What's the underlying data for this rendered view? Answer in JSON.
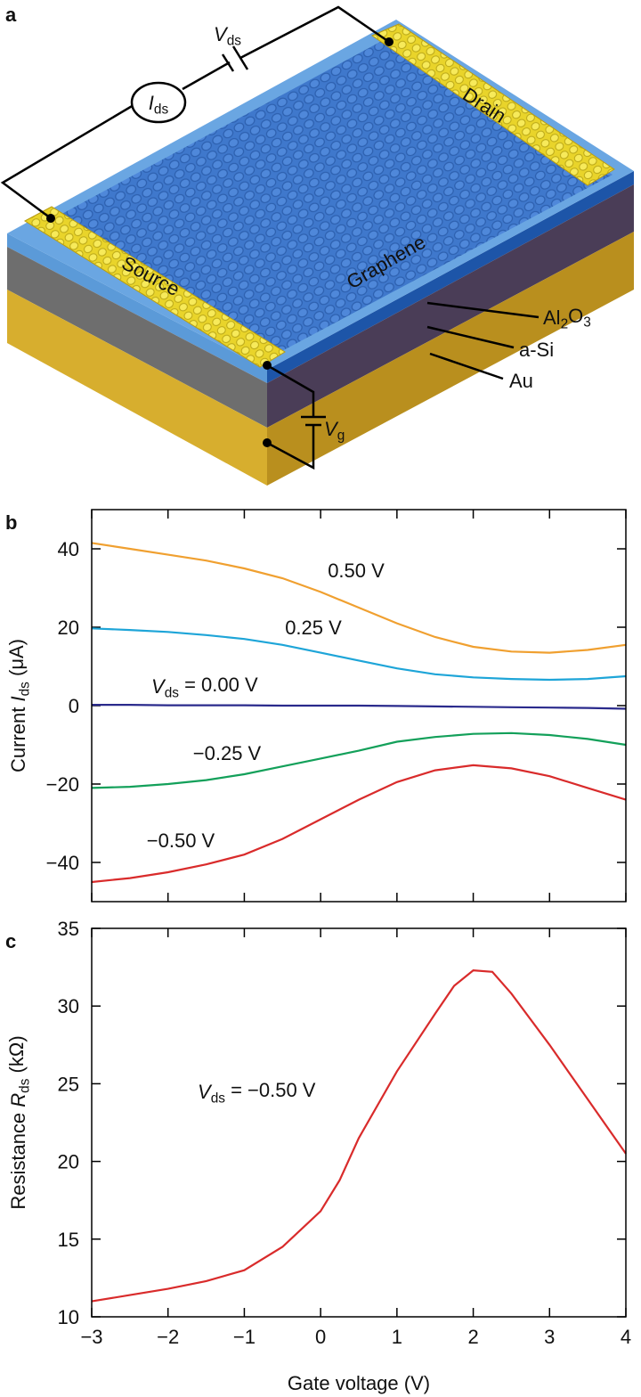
{
  "diagram": {
    "panel_label": "a",
    "vds": [
      {
        "t": "V",
        "i": true
      },
      {
        "t": "ds",
        "sub": true
      }
    ],
    "ids": [
      {
        "t": "I",
        "i": true
      },
      {
        "t": "ds",
        "sub": true
      }
    ],
    "drain": "Drain",
    "source": "Source",
    "graphene": "Graphene",
    "al2o3": [
      {
        "t": "Al"
      },
      {
        "t": "2",
        "sub": true
      },
      {
        "t": "O"
      },
      {
        "t": "3",
        "sub": true
      }
    ],
    "asi": "a-Si",
    "au": "Au",
    "vg": [
      {
        "t": "V",
        "i": true
      },
      {
        "t": "g",
        "sub": true
      }
    ]
  },
  "chart_data": [
    {
      "type": "line",
      "panel_label": "b",
      "y_label": [
        {
          "t": "Current "
        },
        {
          "t": "I",
          "i": true
        },
        {
          "t": "ds",
          "sub": true
        },
        {
          "t": " (μA)"
        }
      ],
      "x": [
        -3,
        -2.5,
        -2,
        -1.5,
        -1,
        -0.5,
        0,
        0.5,
        1,
        1.5,
        2,
        2.5,
        3,
        3.5,
        4
      ],
      "series": [
        {
          "label": [
            {
              "t": "0.50 V"
            }
          ],
          "color": "#f0a030",
          "values": [
            41.5,
            40,
            38.5,
            37,
            35,
            32.5,
            29,
            25,
            21,
            17.5,
            15,
            13.8,
            13.5,
            14.2,
            15.5
          ]
        },
        {
          "label": [
            {
              "t": "0.25 V"
            }
          ],
          "color": "#1ea5d8",
          "values": [
            19.7,
            19.3,
            18.8,
            18,
            17,
            15.5,
            13.5,
            11.5,
            9.5,
            8,
            7.2,
            6.8,
            6.6,
            6.8,
            7.5
          ]
        },
        {
          "label": [
            {
              "t": "V",
              "i": true
            },
            {
              "t": "ds",
              "sub": true
            },
            {
              "t": " = 0.00 V"
            }
          ],
          "color": "#2a2a8c",
          "values": [
            0.2,
            0.2,
            0.1,
            0.1,
            0.1,
            0,
            0,
            0,
            -0.1,
            -0.2,
            -0.3,
            -0.4,
            -0.5,
            -0.6,
            -0.8
          ]
        },
        {
          "label": [
            {
              "t": "−0.25 V"
            }
          ],
          "color": "#13a05a",
          "values": [
            -21,
            -20.7,
            -20,
            -19,
            -17.5,
            -15.5,
            -13.5,
            -11.5,
            -9.2,
            -8,
            -7.2,
            -7,
            -7.5,
            -8.5,
            -10
          ]
        },
        {
          "label": [
            {
              "t": "−0.50 V"
            }
          ],
          "color": "#d92b2b",
          "values": [
            -45,
            -44,
            -42.5,
            -40.5,
            -38,
            -34,
            -29,
            -24,
            -19.5,
            -16.5,
            -15.2,
            -16,
            -18,
            -21,
            -24
          ]
        }
      ],
      "xlim": [
        -3,
        4
      ],
      "ylim": [
        -50,
        50
      ],
      "xticks": [
        -3,
        -2,
        -1,
        0,
        1,
        2,
        3,
        4
      ],
      "xtick_labels": false,
      "yticks": [
        {
          "value": -40,
          "label": "−40"
        },
        {
          "value": -20,
          "label": "−20"
        },
        0,
        20,
        40
      ]
    },
    {
      "type": "line",
      "panel_label": "c",
      "x_label": "Gate voltage (V)",
      "y_label": [
        {
          "t": "Resistance "
        },
        {
          "t": "R",
          "i": true
        },
        {
          "t": "ds",
          "sub": true
        },
        {
          "t": " (kΩ)"
        }
      ],
      "x": [
        -3,
        -2.5,
        -2,
        -1.5,
        -1,
        -0.5,
        0,
        0.25,
        0.5,
        1,
        1.5,
        1.75,
        2,
        2.25,
        2.5,
        3,
        3.5,
        4
      ],
      "series": [
        {
          "label": [
            {
              "t": "V",
              "i": true
            },
            {
              "t": "ds",
              "sub": true
            },
            {
              "t": " = −0.50 V"
            }
          ],
          "color": "#d92b2b",
          "values": [
            11,
            11.4,
            11.8,
            12.3,
            13,
            14.5,
            16.8,
            18.8,
            21.5,
            25.8,
            29.5,
            31.3,
            32.3,
            32.2,
            30.8,
            27.5,
            24,
            20.5
          ]
        }
      ],
      "xlim": [
        -3,
        4
      ],
      "ylim": [
        10,
        35
      ],
      "xticks": [
        {
          "value": -3,
          "label": "−3"
        },
        {
          "value": -2,
          "label": "−2"
        },
        {
          "value": -1,
          "label": "−1"
        },
        0,
        1,
        2,
        3,
        4
      ],
      "xtick_labels": true,
      "yticks": [
        10,
        15,
        20,
        25,
        30,
        35
      ]
    }
  ]
}
